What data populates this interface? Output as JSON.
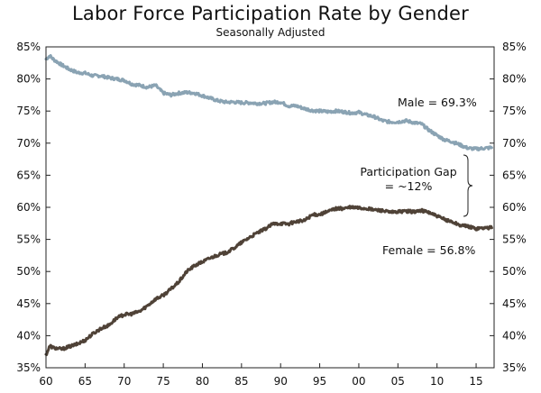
{
  "chart_data": {
    "type": "line",
    "title": "Labor Force Participation Rate by Gender",
    "subtitle": "Seasonally Adjusted",
    "xlabel": "",
    "ylabel": "",
    "xlim": [
      1960,
      2017.3
    ],
    "ylim": [
      35,
      85
    ],
    "x_ticks": [
      1960,
      1965,
      1970,
      1975,
      1980,
      1985,
      1990,
      1995,
      2000,
      2005,
      2010,
      2015
    ],
    "x_tick_labels": [
      "60",
      "65",
      "70",
      "75",
      "80",
      "85",
      "90",
      "95",
      "00",
      "05",
      "10",
      "15"
    ],
    "y_ticks": [
      35,
      40,
      45,
      50,
      55,
      60,
      65,
      70,
      75,
      80,
      85
    ],
    "y_tick_labels": [
      "35%",
      "40%",
      "45%",
      "50%",
      "55%",
      "60%",
      "65%",
      "70%",
      "75%",
      "80%",
      "85%"
    ],
    "grid": false,
    "series": [
      {
        "name": "Male",
        "color": "#8aa3b3",
        "x": [
          1960,
          1960.5,
          1961,
          1962,
          1963,
          1964,
          1965,
          1966,
          1967,
          1968,
          1969,
          1970,
          1971,
          1972,
          1973,
          1974,
          1975,
          1976,
          1977,
          1978,
          1979,
          1980,
          1981,
          1982,
          1983,
          1984,
          1985,
          1986,
          1987,
          1988,
          1989,
          1990,
          1991,
          1992,
          1993,
          1994,
          1995,
          1996,
          1997,
          1998,
          1999,
          2000,
          2001,
          2002,
          2003,
          2004,
          2005,
          2006,
          2007,
          2008,
          2009,
          2010,
          2011,
          2012,
          2013,
          2014,
          2015,
          2016,
          2017
        ],
        "values": [
          83.1,
          83.6,
          83.0,
          82.2,
          81.5,
          81.0,
          80.9,
          80.5,
          80.5,
          80.2,
          80.0,
          79.8,
          79.2,
          79.0,
          78.7,
          79.0,
          77.8,
          77.5,
          77.8,
          77.9,
          77.8,
          77.4,
          77.0,
          76.6,
          76.4,
          76.4,
          76.3,
          76.3,
          76.2,
          76.2,
          76.4,
          76.4,
          75.8,
          75.8,
          75.4,
          75.1,
          75.0,
          74.9,
          75.0,
          74.9,
          74.7,
          74.8,
          74.4,
          74.1,
          73.5,
          73.3,
          73.3,
          73.5,
          73.2,
          73.0,
          72.0,
          71.2,
          70.5,
          70.2,
          69.7,
          69.2,
          69.1,
          69.2,
          69.3
        ]
      },
      {
        "name": "Female",
        "color": "#4f4237",
        "x": [
          1960,
          1960.5,
          1961,
          1962,
          1963,
          1964,
          1965,
          1966,
          1967,
          1968,
          1969,
          1970,
          1971,
          1972,
          1973,
          1974,
          1975,
          1976,
          1977,
          1978,
          1979,
          1980,
          1981,
          1982,
          1983,
          1984,
          1985,
          1986,
          1987,
          1988,
          1989,
          1990,
          1991,
          1992,
          1993,
          1994,
          1995,
          1996,
          1997,
          1998,
          1999,
          2000,
          2001,
          2002,
          2003,
          2004,
          2005,
          2006,
          2007,
          2008,
          2009,
          2010,
          2011,
          2012,
          2013,
          2014,
          2015,
          2016,
          2017
        ],
        "values": [
          37.0,
          38.4,
          38.1,
          37.9,
          38.3,
          38.7,
          39.3,
          40.3,
          41.1,
          41.6,
          42.7,
          43.3,
          43.4,
          43.8,
          44.7,
          45.7,
          46.3,
          47.3,
          48.4,
          50.0,
          50.9,
          51.5,
          52.1,
          52.6,
          52.9,
          53.6,
          54.5,
          55.3,
          56.0,
          56.6,
          57.4,
          57.5,
          57.4,
          57.8,
          57.9,
          58.8,
          58.9,
          59.3,
          59.8,
          59.8,
          60.0,
          59.9,
          59.8,
          59.6,
          59.5,
          59.2,
          59.3,
          59.4,
          59.3,
          59.5,
          59.2,
          58.6,
          58.1,
          57.7,
          57.2,
          57.0,
          56.7,
          56.8,
          56.8
        ]
      }
    ],
    "annotations": {
      "male_label": "Male = 69.3%",
      "female_label": "Female = 56.8%",
      "gap_label_line1": "Participation Gap",
      "gap_label_line2": "= ~12%"
    }
  }
}
